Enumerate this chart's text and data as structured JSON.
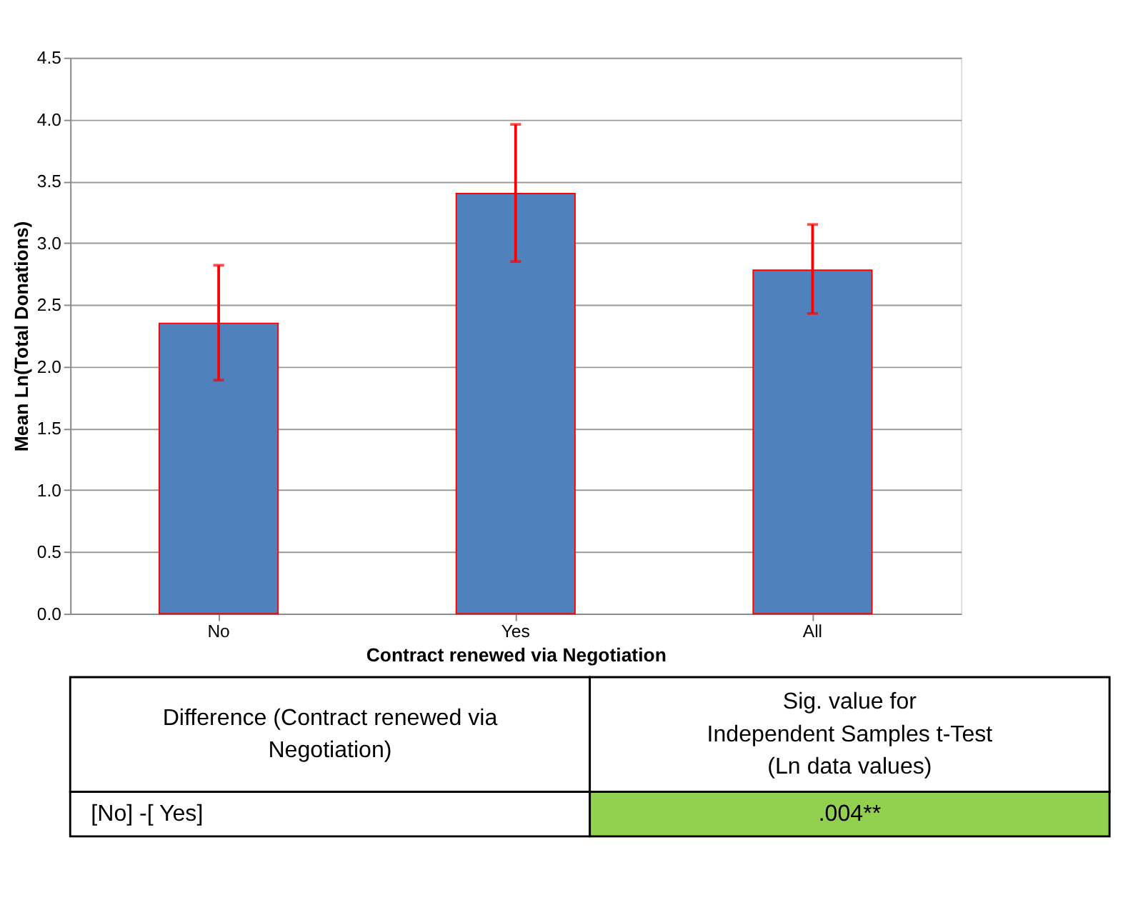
{
  "chart_data": {
    "type": "bar",
    "xlabel": "Contract renewed via Negotiation",
    "ylabel": "Mean Ln(Total Donations)",
    "categories": [
      "No",
      "Yes",
      "All"
    ],
    "values": [
      2.35,
      3.4,
      2.78
    ],
    "errors": [
      [
        1.89,
        2.82
      ],
      [
        2.85,
        3.96
      ],
      [
        2.43,
        3.15
      ]
    ],
    "color": "#4f81bd",
    "ylim": [
      0,
      4.5
    ],
    "yticks": [
      {
        "value": 0,
        "label": "0.0"
      },
      0.5,
      {
        "value": 1,
        "label": "1.0"
      },
      1.5,
      {
        "value": 2,
        "label": "2.0"
      },
      2.5,
      {
        "value": 3,
        "label": "3.0"
      },
      3.5,
      {
        "value": 4,
        "label": "4.0"
      },
      4.5
    ],
    "grid": "y",
    "annotations": [
      "Difference (Contract renewed via\nNegotiation)",
      "Sig. value for\nIndependent Samples t-Test\n(Ln data values)",
      "[No] -[ Yes]",
      ".004**"
    ]
  }
}
